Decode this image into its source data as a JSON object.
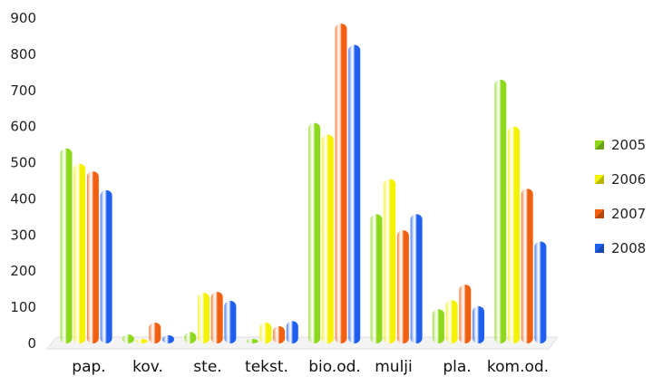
{
  "chart_data": {
    "type": "bar",
    "categories": [
      "pap.",
      "kov.",
      "ste.",
      "tekst.",
      "bio.od.",
      "mulji",
      "pla.",
      "kom.od."
    ],
    "series": [
      {
        "name": "2005",
        "color": "#8ed81c",
        "values": [
          540,
          25,
          32,
          3,
          610,
          358,
          95,
          730
        ]
      },
      {
        "name": "2006",
        "color": "#f5f200",
        "values": [
          497,
          12,
          140,
          58,
          578,
          455,
          120,
          600
        ]
      },
      {
        "name": "2007",
        "color": "#f06010",
        "values": [
          476,
          58,
          143,
          48,
          885,
          313,
          163,
          428
        ]
      },
      {
        "name": "2008",
        "color": "#1f5ff0",
        "values": [
          424,
          23,
          118,
          62,
          826,
          358,
          103,
          282
        ]
      }
    ],
    "yticks": [
      0,
      100,
      200,
      300,
      400,
      500,
      600,
      700,
      800,
      900
    ],
    "ylim": [
      0,
      900
    ],
    "legend_position": "right",
    "grid": false
  }
}
